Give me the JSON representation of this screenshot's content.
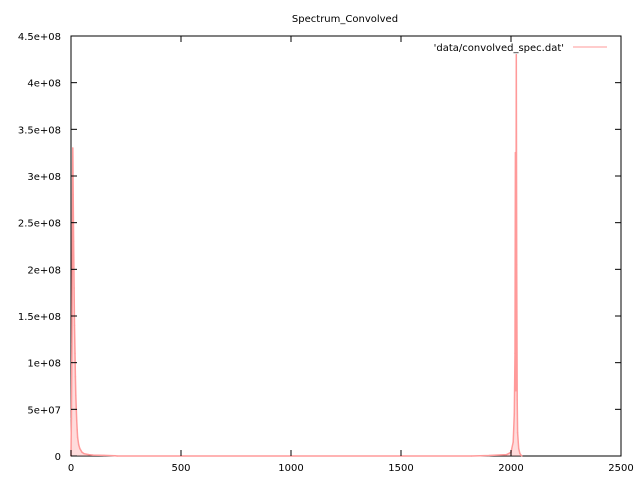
{
  "chart_data": {
    "type": "line",
    "title": "Spectrum_Convolved",
    "xlabel": "",
    "ylabel": "",
    "xlim": [
      0,
      2500
    ],
    "ylim": [
      0,
      450000000
    ],
    "x_ticks": [
      0,
      500,
      1000,
      1500,
      2000,
      2500
    ],
    "x_tick_labels": [
      "0",
      "500",
      "1000",
      "1500",
      "2000",
      "2500"
    ],
    "y_ticks": [
      0,
      50000000,
      100000000,
      150000000,
      200000000,
      250000000,
      300000000,
      350000000,
      400000000,
      450000000
    ],
    "y_tick_labels": [
      "0",
      "5e+07",
      "1e+08",
      "1.5e+08",
      "2e+08",
      "2.5e+08",
      "3e+08",
      "3.5e+08",
      "4e+08",
      "4.5e+08"
    ],
    "grid": false,
    "legend_position": "top-right",
    "series": [
      {
        "name": "'data/convolved_spec.dat'",
        "color": "#ff9a9a",
        "x": [
          0,
          2,
          4,
          6,
          8,
          10,
          12,
          14,
          16,
          18,
          20,
          22,
          24,
          26,
          28,
          30,
          35,
          40,
          50,
          60,
          80,
          100,
          150,
          200,
          210,
          1820,
          1900,
          1980,
          2000,
          2010,
          2015,
          2018,
          2020,
          2022,
          2024,
          2026,
          2028,
          2030,
          2035,
          2040,
          2045,
          2050
        ],
        "y": [
          0,
          40000000,
          120000000,
          215000000,
          330000000,
          280000000,
          230000000,
          180000000,
          140000000,
          110000000,
          85000000,
          65000000,
          50000000,
          38000000,
          28000000,
          20000000,
          12000000,
          8000000,
          4000000,
          2500000,
          1500000,
          1000000,
          600000,
          300000,
          0,
          0,
          500000,
          1500000,
          4000000,
          15000000,
          45000000,
          110000000,
          325000000,
          70000000,
          430000000,
          205000000,
          60000000,
          25000000,
          8000000,
          3000000,
          1000000,
          0
        ]
      }
    ]
  }
}
